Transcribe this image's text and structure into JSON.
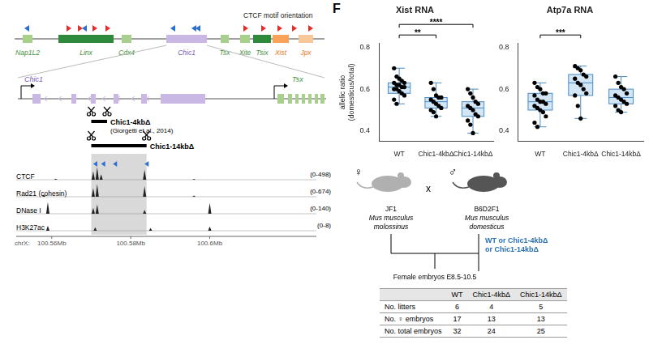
{
  "figure_label": "F",
  "locus": {
    "motif_label": "CTCF motif orientation",
    "genes": [
      {
        "name": "Nap1L2",
        "color": "#a9cf8c",
        "label_color": "#3f8f3a"
      },
      {
        "name": "Linx",
        "color": "#2f8a3b",
        "label_color": "#3f8f3a"
      },
      {
        "name": "Cdx4",
        "color": "#a9cf8c",
        "label_color": "#3f8f3a"
      },
      {
        "name": "Chic1",
        "color": "#c9b8e3",
        "label_color": "#7b5cb5"
      },
      {
        "name": "Tsx",
        "color": "#a9cf8c",
        "label_color": "#3f8f3a"
      },
      {
        "name": "Xite",
        "color": "#a9cf8c",
        "label_color": "#3f8f3a"
      },
      {
        "name": "Tsix",
        "color": "#2f8a3b",
        "label_color": "#3f8f3a"
      },
      {
        "name": "Xist",
        "color": "#f6a25a",
        "label_color": "#e8791f"
      },
      {
        "name": "Jpx",
        "color": "#f9c89a",
        "label_color": "#e8791f"
      }
    ]
  },
  "zoom": {
    "left_gene": "Chic1",
    "right_gene": "Tsx"
  },
  "deletions": [
    {
      "name": "Chic1-4kbΔ",
      "note": "(Giorgetti et al., 2014)",
      "start": 100.57,
      "end": 100.574
    },
    {
      "name": "Chic1-14kbΔ",
      "start": 100.57,
      "end": 100.584
    }
  ],
  "tracks": [
    {
      "name": "CTCF",
      "range_label": "(0-498)",
      "ylim": [
        0,
        498
      ],
      "peaks": [
        [
          100.561,
          40
        ],
        [
          100.5705,
          300
        ],
        [
          100.5715,
          460
        ],
        [
          100.5725,
          200
        ],
        [
          100.5835,
          360
        ],
        [
          100.596,
          30
        ]
      ]
    },
    {
      "name": "Rad21 (cohesin)",
      "range_label": "(0-674)",
      "ylim": [
        0,
        674
      ],
      "peaks": [
        [
          100.558,
          100
        ],
        [
          100.5705,
          420
        ],
        [
          100.5715,
          620
        ],
        [
          100.5835,
          520
        ],
        [
          100.596,
          60
        ]
      ]
    },
    {
      "name": "DNase I",
      "range_label": "(0-140)",
      "ylim": [
        0,
        140
      ],
      "peaks": [
        [
          100.559,
          120
        ],
        [
          100.5705,
          60
        ],
        [
          100.5715,
          95
        ],
        [
          100.5835,
          40
        ],
        [
          100.6,
          110
        ]
      ]
    },
    {
      "name": "H3K27ac",
      "range_label": "(0-8)",
      "ylim": [
        0,
        8
      ],
      "peaks": [
        [
          100.559,
          3
        ],
        [
          100.571,
          2
        ],
        [
          100.585,
          1.5
        ],
        [
          100.6,
          2.5
        ]
      ]
    }
  ],
  "tracks_axis": {
    "chrom": "chrX:",
    "xlim": [
      100.551,
      100.627
    ],
    "ticks": [
      {
        "value": 100.56,
        "label": "100.56Mb"
      },
      {
        "value": 100.58,
        "label": "100.58Mb"
      },
      {
        "value": 100.6,
        "label": "100.6Mb"
      }
    ]
  },
  "chart_data": [
    {
      "type": "box",
      "title": "Xist RNA",
      "y_label": [
        "allelic ratio",
        "(domesticus/total)"
      ],
      "categories": [
        "WT",
        "Chic1-4kbΔ",
        "Chic1-14kbΔ"
      ],
      "ylim": [
        0.35,
        0.82
      ],
      "yticks": [
        0.4,
        0.6,
        0.8
      ],
      "grid": false,
      "color": "#4a8cc4",
      "points": [
        [
          0.7,
          0.66,
          0.65,
          0.64,
          0.63,
          0.63,
          0.62,
          0.62,
          0.61,
          0.61,
          0.6,
          0.6,
          0.59,
          0.58,
          0.57,
          0.55,
          0.53
        ],
        [
          0.63,
          0.6,
          0.57,
          0.56,
          0.56,
          0.55,
          0.54,
          0.53,
          0.52,
          0.51,
          0.5,
          0.49,
          0.47
        ],
        [
          0.6,
          0.58,
          0.56,
          0.54,
          0.53,
          0.52,
          0.51,
          0.5,
          0.48,
          0.47,
          0.45,
          0.43,
          0.39
        ]
      ],
      "boxes": [
        {
          "min": 0.53,
          "q1": 0.58,
          "median": 0.61,
          "q3": 0.63,
          "max": 0.7
        },
        {
          "min": 0.47,
          "q1": 0.51,
          "median": 0.54,
          "q3": 0.56,
          "max": 0.63
        },
        {
          "min": 0.39,
          "q1": 0.47,
          "median": 0.51,
          "q3": 0.54,
          "max": 0.6
        }
      ],
      "significance": [
        {
          "from": "WT",
          "to": "Chic1-4kbΔ",
          "label": "**"
        },
        {
          "from": "WT",
          "to": "Chic1-14kbΔ",
          "label": "****"
        }
      ]
    },
    {
      "type": "box",
      "title": "Atp7a RNA",
      "categories": [
        "WT",
        "Chic1-4kbΔ",
        "Chic1-14kbΔ"
      ],
      "ylim": [
        0.35,
        0.82
      ],
      "yticks": [
        0.4,
        0.6,
        0.8
      ],
      "grid": false,
      "color": "#4a8cc4",
      "points": [
        [
          0.63,
          0.61,
          0.6,
          0.58,
          0.58,
          0.57,
          0.55,
          0.54,
          0.54,
          0.53,
          0.52,
          0.51,
          0.5,
          0.49,
          0.47,
          0.44,
          0.42
        ],
        [
          0.71,
          0.7,
          0.69,
          0.67,
          0.66,
          0.65,
          0.63,
          0.62,
          0.6,
          0.58,
          0.57,
          0.52,
          0.46
        ],
        [
          0.66,
          0.63,
          0.61,
          0.6,
          0.58,
          0.57,
          0.56,
          0.55,
          0.54,
          0.53,
          0.52,
          0.5,
          0.49
        ]
      ],
      "boxes": [
        {
          "min": 0.42,
          "q1": 0.5,
          "median": 0.54,
          "q3": 0.58,
          "max": 0.63
        },
        {
          "min": 0.46,
          "q1": 0.57,
          "median": 0.63,
          "q3": 0.67,
          "max": 0.71
        },
        {
          "min": 0.49,
          "q1": 0.53,
          "median": 0.56,
          "q3": 0.6,
          "max": 0.66
        }
      ],
      "significance": [
        {
          "from": "WT",
          "to": "Chic1-4kbΔ",
          "label": "***"
        }
      ]
    }
  ],
  "cross": {
    "female": {
      "symbol": "♀",
      "strain": "JF1",
      "species": "Mus musculus",
      "subspecies": "molossinus"
    },
    "cross_symbol": "x",
    "male": {
      "symbol": "♂",
      "strain": "B6D2F1",
      "species": "Mus musculus",
      "subspecies": "domesticus"
    },
    "genotypes": [
      "WT or Chic1-4kbΔ",
      "or Chic1-14kbΔ"
    ],
    "genotype_color": "#2a6fb5",
    "offspring": "Female embryos E8.5-10.5"
  },
  "table": {
    "header": [
      "",
      "WT",
      "Chic1-4kbΔ",
      "Chic1-14kbΔ"
    ],
    "rows": [
      [
        "No. litters",
        6,
        4,
        5
      ],
      [
        "No. ♀ embryos",
        17,
        13,
        13
      ],
      [
        "No. total embryos",
        32,
        24,
        25
      ]
    ]
  }
}
